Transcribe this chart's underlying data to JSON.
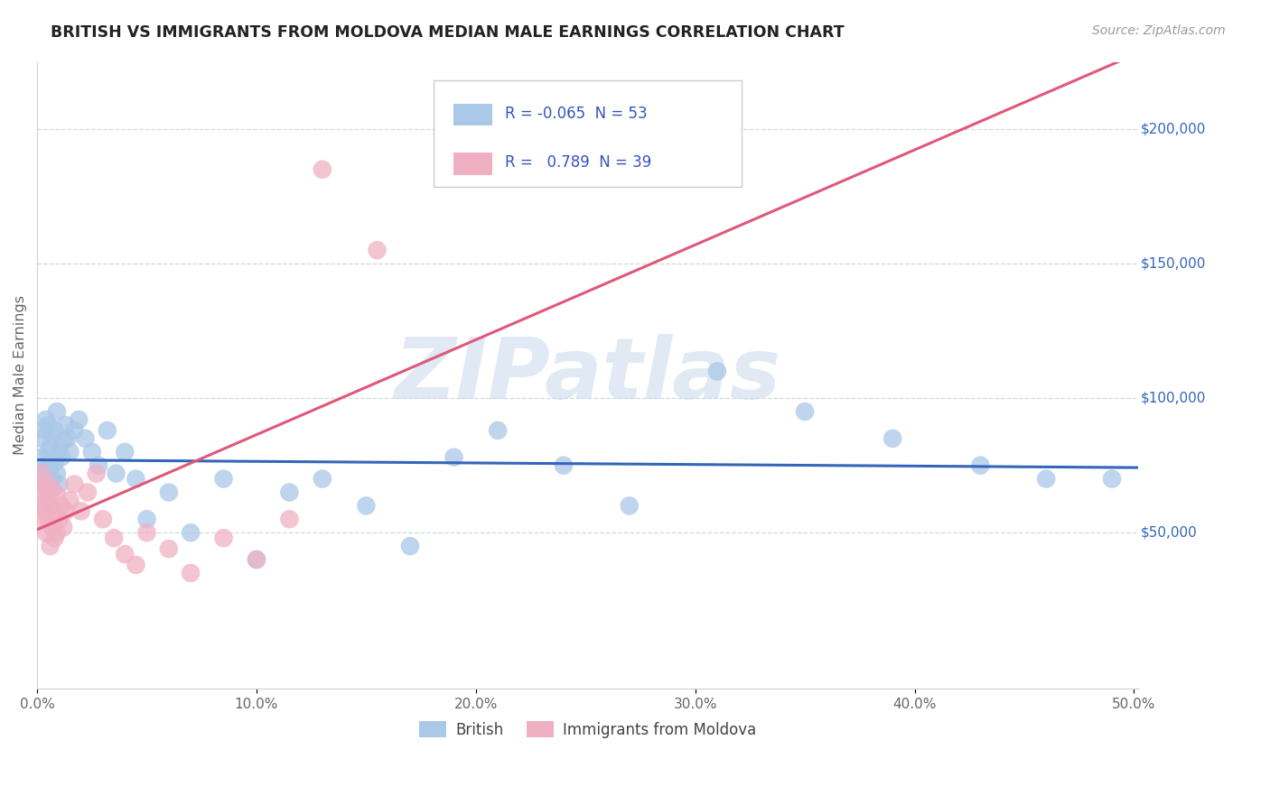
{
  "title": "BRITISH VS IMMIGRANTS FROM MOLDOVA MEDIAN MALE EARNINGS CORRELATION CHART",
  "source": "Source: ZipAtlas.com",
  "ylabel": "Median Male Earnings",
  "xlim": [
    0.0,
    0.502
  ],
  "ylim": [
    -8000,
    225000
  ],
  "xtick_vals": [
    0.0,
    0.1,
    0.2,
    0.3,
    0.4,
    0.5
  ],
  "xtick_labels": [
    "0.0%",
    "10.0%",
    "20.0%",
    "30.0%",
    "40.0%",
    "50.0%"
  ],
  "ytick_vals": [
    50000,
    100000,
    150000,
    200000
  ],
  "ytick_labels": [
    "$50,000",
    "$100,000",
    "$150,000",
    "$200,000"
  ],
  "british_R": "-0.065",
  "british_N": "53",
  "moldova_R": "0.789",
  "moldova_N": "39",
  "british_color": "#aac8e8",
  "british_line_color": "#3366bb",
  "moldova_color": "#f0b0c4",
  "moldova_line_color": "#e05878",
  "legend_british": "British",
  "legend_moldova": "Immigrants from Moldova",
  "r_n_color": "#3355bb",
  "grid_color": "#d0d8e0",
  "spine_color": "#c8d0d8",
  "title_color": "#222222",
  "source_color": "#999999",
  "ylabel_color": "#666666",
  "tick_color": "#666666",
  "watermark": "ZIPatlas",
  "watermark_color": "#c8d8ec",
  "british_x": [
    0.001,
    0.002,
    0.002,
    0.003,
    0.003,
    0.004,
    0.004,
    0.005,
    0.005,
    0.005,
    0.006,
    0.006,
    0.007,
    0.007,
    0.008,
    0.008,
    0.009,
    0.009,
    0.01,
    0.01,
    0.011,
    0.012,
    0.013,
    0.014,
    0.015,
    0.017,
    0.019,
    0.022,
    0.025,
    0.028,
    0.032,
    0.036,
    0.04,
    0.045,
    0.05,
    0.06,
    0.07,
    0.085,
    0.1,
    0.115,
    0.13,
    0.15,
    0.17,
    0.19,
    0.21,
    0.24,
    0.27,
    0.31,
    0.35,
    0.39,
    0.43,
    0.46,
    0.49
  ],
  "british_y": [
    72000,
    78000,
    85000,
    68000,
    88000,
    75000,
    92000,
    65000,
    80000,
    90000,
    74000,
    82000,
    70000,
    86000,
    76000,
    88000,
    72000,
    95000,
    80000,
    68000,
    78000,
    84000,
    90000,
    85000,
    80000,
    88000,
    92000,
    85000,
    80000,
    75000,
    88000,
    72000,
    80000,
    70000,
    55000,
    65000,
    50000,
    70000,
    40000,
    65000,
    70000,
    60000,
    45000,
    78000,
    88000,
    75000,
    60000,
    110000,
    95000,
    85000,
    75000,
    70000,
    70000
  ],
  "moldova_x": [
    0.001,
    0.001,
    0.002,
    0.002,
    0.003,
    0.003,
    0.004,
    0.004,
    0.005,
    0.005,
    0.006,
    0.006,
    0.007,
    0.007,
    0.008,
    0.008,
    0.009,
    0.009,
    0.01,
    0.011,
    0.012,
    0.013,
    0.015,
    0.017,
    0.02,
    0.023,
    0.027,
    0.03,
    0.035,
    0.04,
    0.045,
    0.05,
    0.06,
    0.07,
    0.085,
    0.1,
    0.115,
    0.13,
    0.155
  ],
  "moldova_y": [
    60000,
    68000,
    55000,
    72000,
    58000,
    65000,
    50000,
    62000,
    55000,
    68000,
    45000,
    60000,
    52000,
    66000,
    48000,
    58000,
    50000,
    64000,
    55000,
    60000,
    52000,
    58000,
    62000,
    68000,
    58000,
    65000,
    72000,
    55000,
    48000,
    42000,
    38000,
    50000,
    44000,
    35000,
    48000,
    40000,
    55000,
    185000,
    155000
  ]
}
